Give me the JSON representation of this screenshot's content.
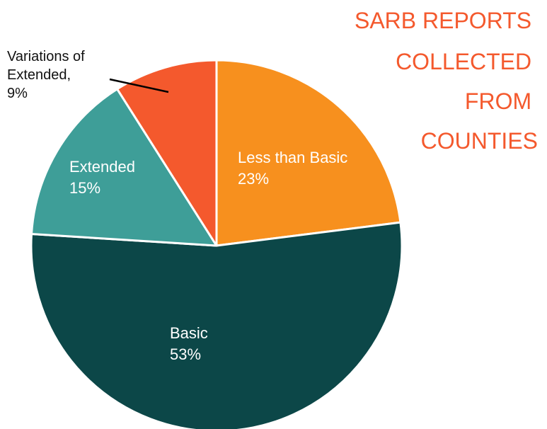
{
  "chart_data": {
    "type": "pie",
    "title_lines": [
      "SARB REPORTS",
      "COLLECTED",
      "FROM",
      "COUNTIES"
    ],
    "slices": [
      {
        "name": "Less than Basic",
        "value": 23,
        "label": "23%",
        "color": "#F7901E"
      },
      {
        "name": "Basic",
        "value": 53,
        "label": "53%",
        "color": "#0C4748"
      },
      {
        "name": "Extended",
        "value": 15,
        "label": "15%",
        "color": "#3E9E98"
      },
      {
        "name": "Variations of Extended",
        "value": 9,
        "label": "9%",
        "color": "#F4592D"
      }
    ],
    "callout": {
      "lines": [
        "Variations of",
        "Extended,",
        "9%"
      ]
    },
    "title_color": "#F4592D",
    "slice_border_color": "#FFFFFF"
  }
}
